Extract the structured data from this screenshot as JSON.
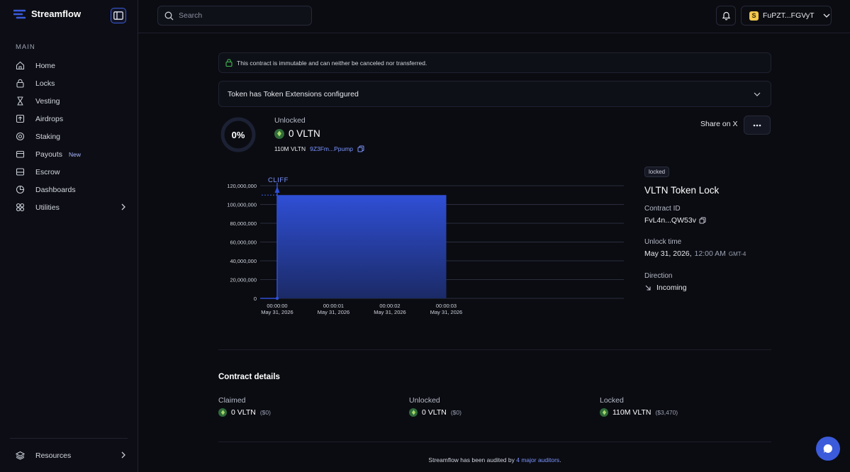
{
  "brand": {
    "name": "Streamflow",
    "accent": "#3b5bdb"
  },
  "sidebar": {
    "section_label": "MAIN",
    "items": [
      {
        "label": "Home",
        "icon": "home-icon"
      },
      {
        "label": "Locks",
        "icon": "lock-icon"
      },
      {
        "label": "Vesting",
        "icon": "hourglass-icon"
      },
      {
        "label": "Airdrops",
        "icon": "airdrop-icon"
      },
      {
        "label": "Staking",
        "icon": "staking-icon"
      },
      {
        "label": "Payouts",
        "icon": "payouts-icon",
        "badge": "New"
      },
      {
        "label": "Escrow",
        "icon": "escrow-icon"
      },
      {
        "label": "Dashboards",
        "icon": "dashboard-icon"
      },
      {
        "label": "Utilities",
        "icon": "utilities-icon"
      }
    ],
    "resources_label": "Resources"
  },
  "header": {
    "search_placeholder": "Search",
    "wallet_label": "FuPZT...FGVyT"
  },
  "contract": {
    "notice": "This contract is immutable and can neither be canceled nor transferred.",
    "extensions_label": "Token has Token Extensions configured",
    "progress_percent": "0%",
    "progress_value": 0,
    "unlocked_label": "Unlocked",
    "unlocked_amount": "0 VLTN",
    "total_amount": "110M VLTN",
    "mint_short": "9Z3Fm...Ppump",
    "share_label": "Share on X",
    "status_badge": "locked",
    "title": "VLTN Token Lock",
    "contract_id_label": "Contract ID",
    "contract_id": "FvL4n...QW53v",
    "unlock_time_label": "Unlock time",
    "unlock_date": "May 31, 2026,",
    "unlock_clock": "12:00 AM",
    "unlock_tz": "GMT-4",
    "direction_label": "Direction",
    "direction": "Incoming"
  },
  "chart_data": {
    "type": "area",
    "title": "",
    "annotation": "CLIFF",
    "x": [
      "00:00:00",
      "00:00:01",
      "00:00:02",
      "00:00:03"
    ],
    "x_dates": [
      "May 31, 2026",
      "May 31, 2026",
      "May 31, 2026",
      "May 31, 2026"
    ],
    "series": [
      {
        "name": "Unlocked",
        "x": [
          0,
          0,
          3
        ],
        "values": [
          0,
          110000000,
          110000000
        ]
      }
    ],
    "ylim": [
      0,
      120000000
    ],
    "yticks": [
      0,
      20000000,
      40000000,
      60000000,
      80000000,
      100000000,
      120000000
    ],
    "ytick_labels": [
      "0",
      "20,000,000",
      "40,000,000",
      "60,000,000",
      "80,000,000",
      "100,000,000",
      "120,000,000"
    ],
    "xlabel": "",
    "ylabel": "",
    "color": "#2f4fd6"
  },
  "details": {
    "title": "Contract details",
    "columns": [
      {
        "label": "Claimed",
        "amount": "0 VLTN",
        "usd": "($0)"
      },
      {
        "label": "Unlocked",
        "amount": "0 VLTN",
        "usd": "($0)"
      },
      {
        "label": "Locked",
        "amount": "110M VLTN",
        "usd": "($3,470)"
      }
    ]
  },
  "footer": {
    "text_before": "Streamflow has been audited by ",
    "link": "4 major auditors",
    "text_after": "."
  }
}
